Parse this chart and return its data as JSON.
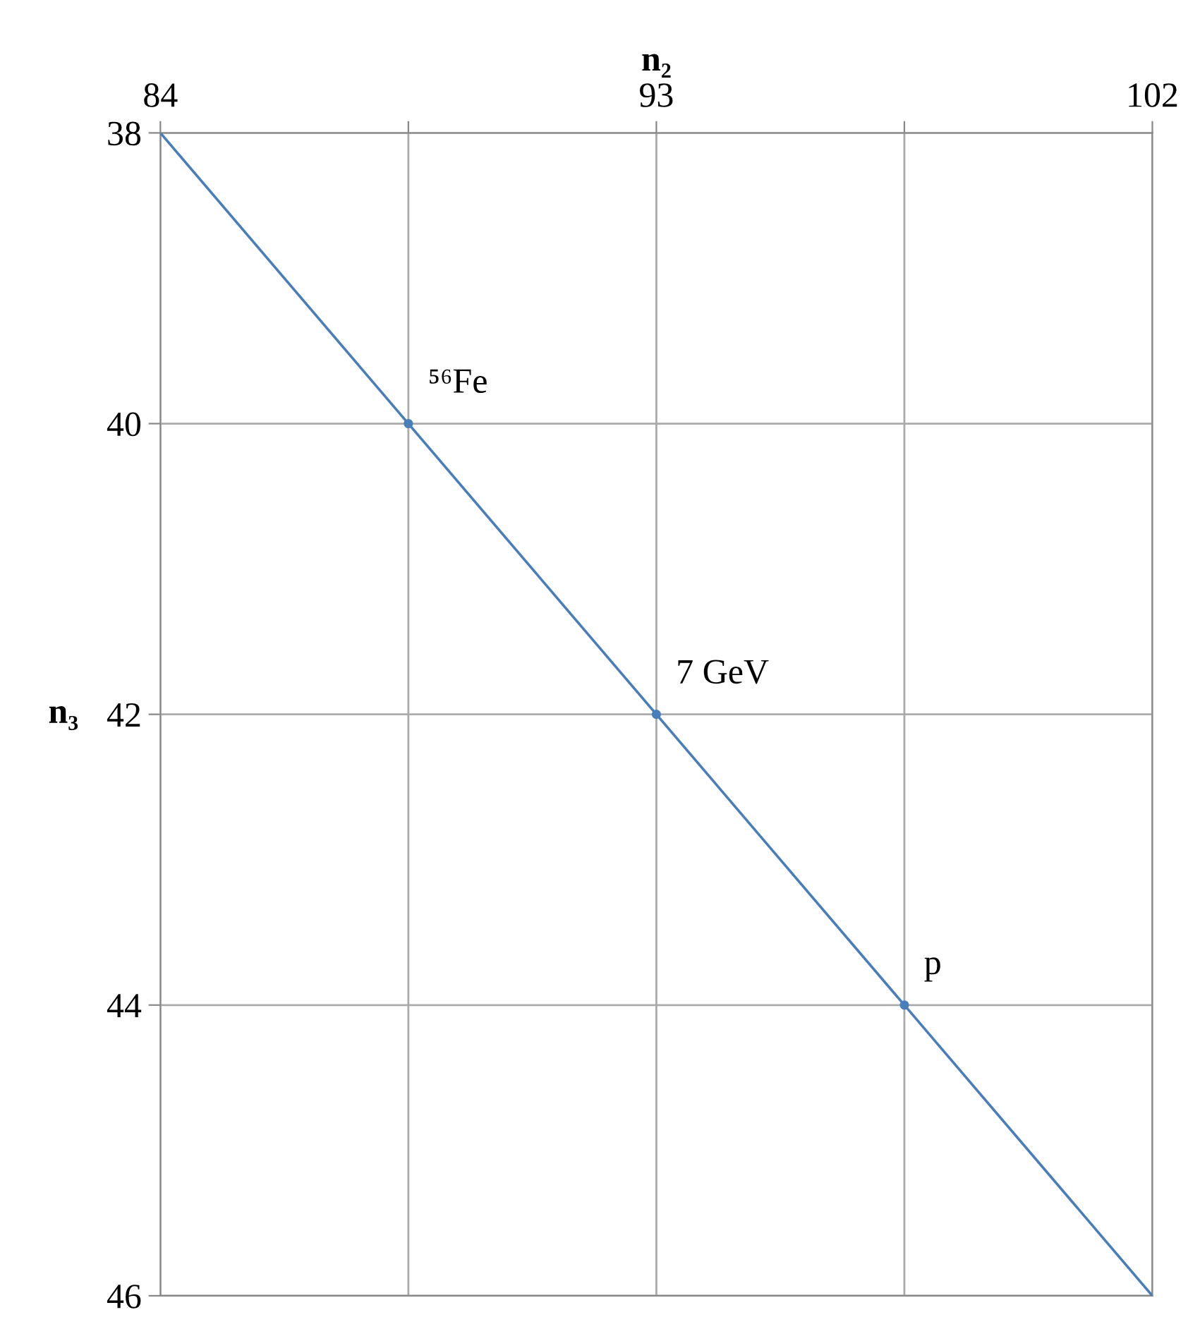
{
  "chart_data": {
    "type": "line",
    "xlabel": "n₂",
    "ylabel": "n₃",
    "xlim": [
      84,
      102
    ],
    "xticks": [
      84,
      {
        "value": 88.5,
        "label": null
      },
      93,
      {
        "value": 97.5,
        "label": null
      },
      102
    ],
    "ylim": [
      46,
      38
    ],
    "yticks": [
      38,
      40,
      42,
      44,
      46
    ],
    "series": [
      {
        "color": "#4a7ebb",
        "x": [
          84,
          102
        ],
        "values": [
          38,
          46
        ],
        "marker": "none"
      },
      {
        "type": "scatter",
        "color": "#4a7ebb",
        "x": [
          88.5,
          93,
          97.5
        ],
        "values": [
          40,
          42,
          44
        ],
        "marker": "circle"
      }
    ],
    "annotations": [
      {
        "text": "⁵⁶Fe",
        "x": 88.5,
        "y": 40
      },
      {
        "text": "7 GeV",
        "x": 93,
        "y": 42
      },
      {
        "text": "p",
        "x": 97.5,
        "y": 44
      }
    ],
    "grid": true,
    "legend": false
  }
}
